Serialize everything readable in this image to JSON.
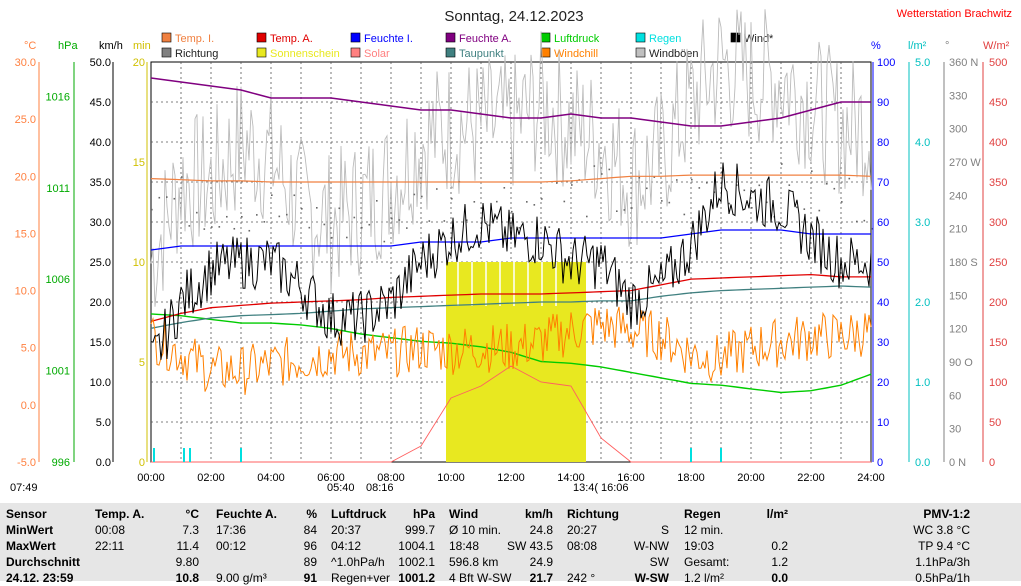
{
  "title": "Sonntag, 24.12.2023",
  "station": "Wetterstation Brachwitz",
  "legend": [
    {
      "label": "Temp. I.",
      "color": "#f08040"
    },
    {
      "label": "Richtung",
      "color": "#808080"
    },
    {
      "label": "Temp. A.",
      "color": "#e00000"
    },
    {
      "label": "Sonnenschein",
      "color": "#e8e820"
    },
    {
      "label": "Feuchte I.",
      "color": "#0000ff"
    },
    {
      "label": "Solar",
      "color": "#ff8080"
    },
    {
      "label": "Feuchte A.",
      "color": "#800080"
    },
    {
      "label": "Taupunkt",
      "color": "#408080"
    },
    {
      "label": "Luftdruck",
      "color": "#00cc00"
    },
    {
      "label": "Windchill",
      "color": "#ff8000"
    },
    {
      "label": "Regen",
      "color": "#00e0e0"
    },
    {
      "label": "Windböen",
      "color": "#c0c0c0"
    },
    {
      "label": "Wind*",
      "color": "#000000"
    }
  ],
  "axes": {
    "left": [
      {
        "unit": "°C",
        "color": "#ff8040",
        "ticks": [
          "30.0",
          "25.0",
          "20.0",
          "15.0",
          "10.0",
          "5.0",
          "0.0",
          "-5.0"
        ]
      },
      {
        "unit": "hPa",
        "color": "#00aa00",
        "ticks": [
          "1016",
          "1011",
          "1006",
          "1001",
          "996"
        ]
      },
      {
        "unit": "km/h",
        "color": "#000000",
        "ticks": [
          "50.0",
          "45.0",
          "40.0",
          "35.0",
          "30.0",
          "25.0",
          "20.0",
          "15.0",
          "10.0",
          "5.0",
          "0.0"
        ]
      },
      {
        "unit": "min",
        "color": "#d0c000",
        "ticks": [
          "20",
          "15",
          "10",
          "5",
          "0"
        ]
      }
    ],
    "right": [
      {
        "unit": "%",
        "color": "#0000ff",
        "ticks": [
          "100",
          "90",
          "80",
          "70",
          "60",
          "50",
          "40",
          "30",
          "20",
          "10",
          "0"
        ]
      },
      {
        "unit": "l/m²",
        "color": "#00c0c0",
        "ticks": [
          "5.0",
          "4.0",
          "3.0",
          "2.0",
          "1.0",
          "0.0"
        ]
      },
      {
        "unit": "°",
        "color": "#808080",
        "ticks": [
          "360 N",
          "330",
          "300",
          "270 W",
          "240",
          "210",
          "180 S",
          "150",
          "120",
          "90 O",
          "60",
          "30",
          "0 N"
        ]
      },
      {
        "unit": "W/m²",
        "color": "#e04040",
        "ticks": [
          "500",
          "450",
          "400",
          "350",
          "300",
          "250",
          "200",
          "150",
          "100",
          "50",
          "0"
        ]
      }
    ],
    "x_ticks": [
      "00:00",
      "02:00",
      "04:00",
      "06:00",
      "08:00",
      "10:00",
      "12:00",
      "14:00",
      "16:00",
      "18:00",
      "20:00",
      "22:00",
      "24:00"
    ]
  },
  "sun": {
    "dawn": "05:40",
    "sunrise": "08:16",
    "sunrise_left": "07:49",
    "culmination": "13:4(",
    "sunset": "16:06"
  },
  "chart_data": {
    "type": "line",
    "title": "Sonntag, 24.12.2023",
    "x_range": [
      "00:00",
      "24:00"
    ],
    "x_hours": [
      0,
      1,
      2,
      3,
      4,
      5,
      6,
      7,
      8,
      9,
      10,
      11,
      12,
      13,
      14,
      15,
      16,
      17,
      18,
      19,
      20,
      21,
      22,
      23,
      24
    ],
    "series": [
      {
        "name": "Temp. I.",
        "unit": "°C",
        "values": [
          19.8,
          19.7,
          19.6,
          19.6,
          19.5,
          19.5,
          19.5,
          19.5,
          19.5,
          19.5,
          19.5,
          19.5,
          19.5,
          19.5,
          19.6,
          19.8,
          20.0,
          20.0,
          20.1,
          20.1,
          20.1,
          20.1,
          20.1,
          20.1,
          20.0
        ]
      },
      {
        "name": "Temp. A.",
        "unit": "°C",
        "values": [
          7.3,
          8.0,
          8.5,
          8.7,
          8.9,
          9.0,
          9.1,
          9.2,
          9.4,
          9.5,
          9.6,
          9.7,
          9.7,
          9.7,
          9.8,
          9.9,
          10.0,
          10.5,
          11.0,
          11.1,
          11.2,
          11.3,
          11.4,
          11.2,
          11.2
        ]
      },
      {
        "name": "Taupunkt",
        "unit": "°C",
        "values": [
          6.7,
          7.2,
          7.6,
          7.8,
          7.9,
          8.0,
          8.2,
          8.4,
          8.5,
          8.6,
          8.7,
          8.8,
          8.9,
          9.0,
          9.0,
          9.1,
          9.1,
          9.5,
          9.8,
          10.0,
          10.1,
          10.2,
          10.3,
          10.4,
          10.3
        ]
      },
      {
        "name": "Windchill",
        "unit": "°C",
        "values": [
          6.0,
          4.5,
          3.0,
          3.0,
          3.5,
          4.0,
          4.5,
          4.5,
          4.5,
          5.0,
          4.8,
          5.0,
          5.0,
          5.5,
          6.5,
          7.0,
          6.5,
          6.0,
          4.5,
          4.0,
          5.0,
          5.5,
          6.0,
          6.0,
          6.5
        ]
      },
      {
        "name": "Feuchte I.",
        "unit": "%",
        "values": [
          53,
          54,
          54,
          54,
          54,
          54,
          54,
          54,
          54,
          55,
          55,
          55,
          56,
          56,
          56,
          56,
          56,
          56,
          57,
          58,
          58,
          58,
          57,
          57,
          57
        ]
      },
      {
        "name": "Feuchte A.",
        "unit": "%",
        "values": [
          96,
          95,
          94,
          93,
          91,
          91,
          91,
          90,
          89,
          88,
          88,
          87,
          86,
          86,
          87,
          86,
          86,
          85,
          84,
          84,
          85,
          86,
          88,
          90,
          90
        ]
      },
      {
        "name": "Luftdruck",
        "unit": "hPa",
        "values": [
          1004.1,
          1004.0,
          1003.8,
          1003.6,
          1003.6,
          1003.5,
          1003.3,
          1003.0,
          1002.8,
          1002.6,
          1002.5,
          1002.3,
          1002.0,
          1001.5,
          1001.4,
          1001.2,
          1000.9,
          1000.6,
          1000.3,
          1000.2,
          1000.0,
          999.8,
          999.9,
          1000.2,
          1000.8
        ]
      },
      {
        "name": "Wind*",
        "unit": "km/h",
        "values": [
          12,
          20,
          24,
          25,
          25,
          22,
          18,
          18,
          20,
          25,
          28,
          30,
          28,
          28,
          25,
          25,
          20,
          22,
          27,
          35,
          33,
          32,
          28,
          25,
          25
        ]
      },
      {
        "name": "Windböen",
        "unit": "km/h",
        "values": [
          25,
          35,
          35,
          40,
          38,
          32,
          30,
          32,
          35,
          40,
          42,
          42,
          42,
          45,
          42,
          40,
          35,
          38,
          45,
          50,
          48,
          48,
          45,
          42,
          42
        ]
      },
      {
        "name": "Richtung",
        "unit": "°",
        "values": [
          240,
          235,
          230,
          230,
          225,
          220,
          215,
          215,
          220,
          230,
          240,
          240,
          235,
          235,
          240,
          245,
          235,
          240,
          240,
          255,
          250,
          245,
          240,
          240,
          235
        ]
      },
      {
        "name": "Solar",
        "unit": "W/m²",
        "values": [
          0,
          0,
          0,
          0,
          0,
          0,
          0,
          0,
          0,
          20,
          80,
          95,
          120,
          100,
          95,
          30,
          0,
          0,
          0,
          0,
          0,
          0,
          0,
          0,
          0
        ]
      }
    ],
    "sunshine_bar": {
      "name": "Sonnenschein",
      "unit": "min",
      "start": "09:50",
      "end": "14:30",
      "value": 10
    },
    "rain_marks_hours": [
      0.1,
      1.1,
      1.3,
      3.0,
      18.0,
      19.0
    ]
  },
  "stats": {
    "sensor": {
      "header": "Sensor",
      "rows": [
        "MinWert",
        "MaxWert",
        "Durchschnitt",
        "24.12. 23:59"
      ]
    },
    "temp_a": {
      "header": "Temp. A.",
      "unit": "°C",
      "rows": [
        [
          "00:08",
          "7.3"
        ],
        [
          "22:11",
          "11.4"
        ],
        [
          "",
          "9.80"
        ],
        [
          "",
          "10.8"
        ]
      ]
    },
    "feuchte_a": {
      "header": "Feuchte A.",
      "unit": "%",
      "rows": [
        [
          "17:36",
          "84"
        ],
        [
          "00:12",
          "96"
        ],
        [
          "",
          "89"
        ],
        [
          "9.00 g/m³",
          "91"
        ]
      ]
    },
    "luftdruck": {
      "header": "Luftdruck",
      "unit": "hPa",
      "rows": [
        [
          "20:37",
          "999.7"
        ],
        [
          "04:12",
          "1004.1"
        ],
        [
          "^1.0hPa/h",
          "1002.1"
        ],
        [
          "Regen+ver",
          "1001.2"
        ]
      ]
    },
    "wind": {
      "header": "Wind",
      "unit": "km/h",
      "rows": [
        [
          "Ø 10 min.",
          "24.8"
        ],
        [
          "18:48",
          "SW 43.5"
        ],
        [
          "596.8 km",
          "24.9"
        ],
        [
          "4 Bft W-SW",
          "21.7"
        ]
      ]
    },
    "richtung": {
      "header": "Richtung",
      "rows": [
        [
          "20:27",
          "S"
        ],
        [
          "08:08",
          "W-NW"
        ],
        [
          "",
          "SW"
        ],
        [
          "242 °",
          "W-SW"
        ]
      ]
    },
    "regen": {
      "header": "Regen",
      "unit": "l/m²",
      "rows": [
        [
          "12 min.",
          ""
        ],
        [
          "19:03",
          "0.2"
        ],
        [
          "Gesamt:",
          "1.2"
        ],
        [
          "1.2 l/m²",
          "0.0"
        ]
      ]
    },
    "pmv": {
      "header": "PMV-1:2",
      "rows": [
        "WC 3.8 °C",
        "TP 9.4 °C",
        "1.1hPa/3h",
        "0.5hPa/1h"
      ]
    }
  }
}
